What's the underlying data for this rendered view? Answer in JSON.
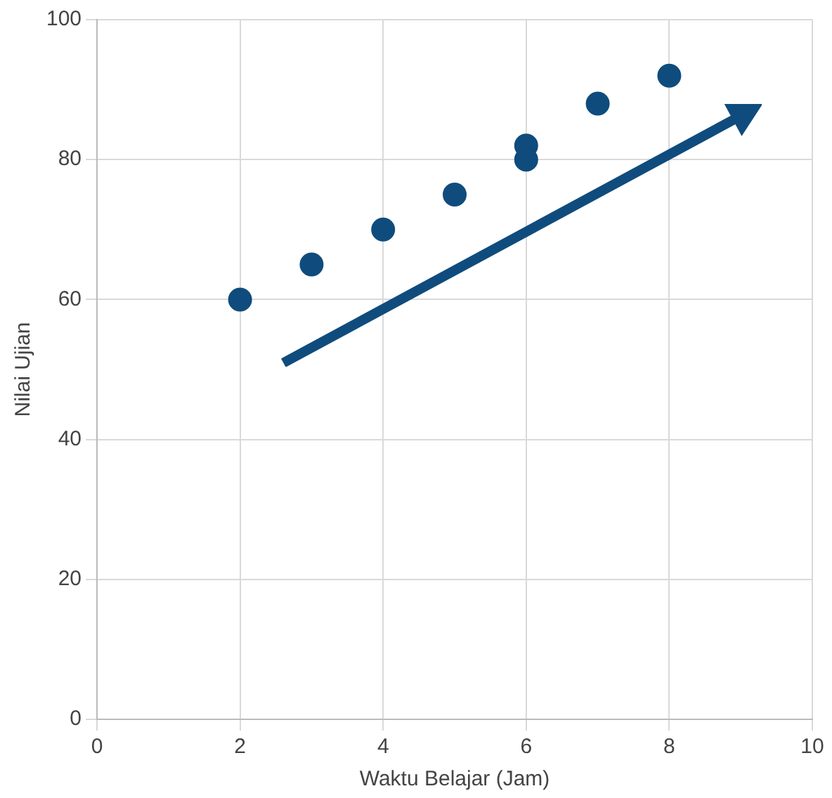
{
  "chart_data": {
    "type": "scatter",
    "xlabel": "Waktu Belajar (Jam)",
    "ylabel": "Nilai Ujian",
    "x": [
      2,
      3,
      4,
      5,
      6,
      6,
      7,
      8
    ],
    "values": [
      60,
      65,
      70,
      75,
      82,
      80,
      88,
      92
    ],
    "color": "#0f4c7d",
    "marker": "circle",
    "xlim": [
      0,
      10
    ],
    "xticks": [
      0,
      2,
      4,
      6,
      8,
      10
    ],
    "ylim": [
      0,
      100
    ],
    "yticks": [
      0,
      20,
      40,
      60,
      80,
      100
    ],
    "grid": true
  }
}
